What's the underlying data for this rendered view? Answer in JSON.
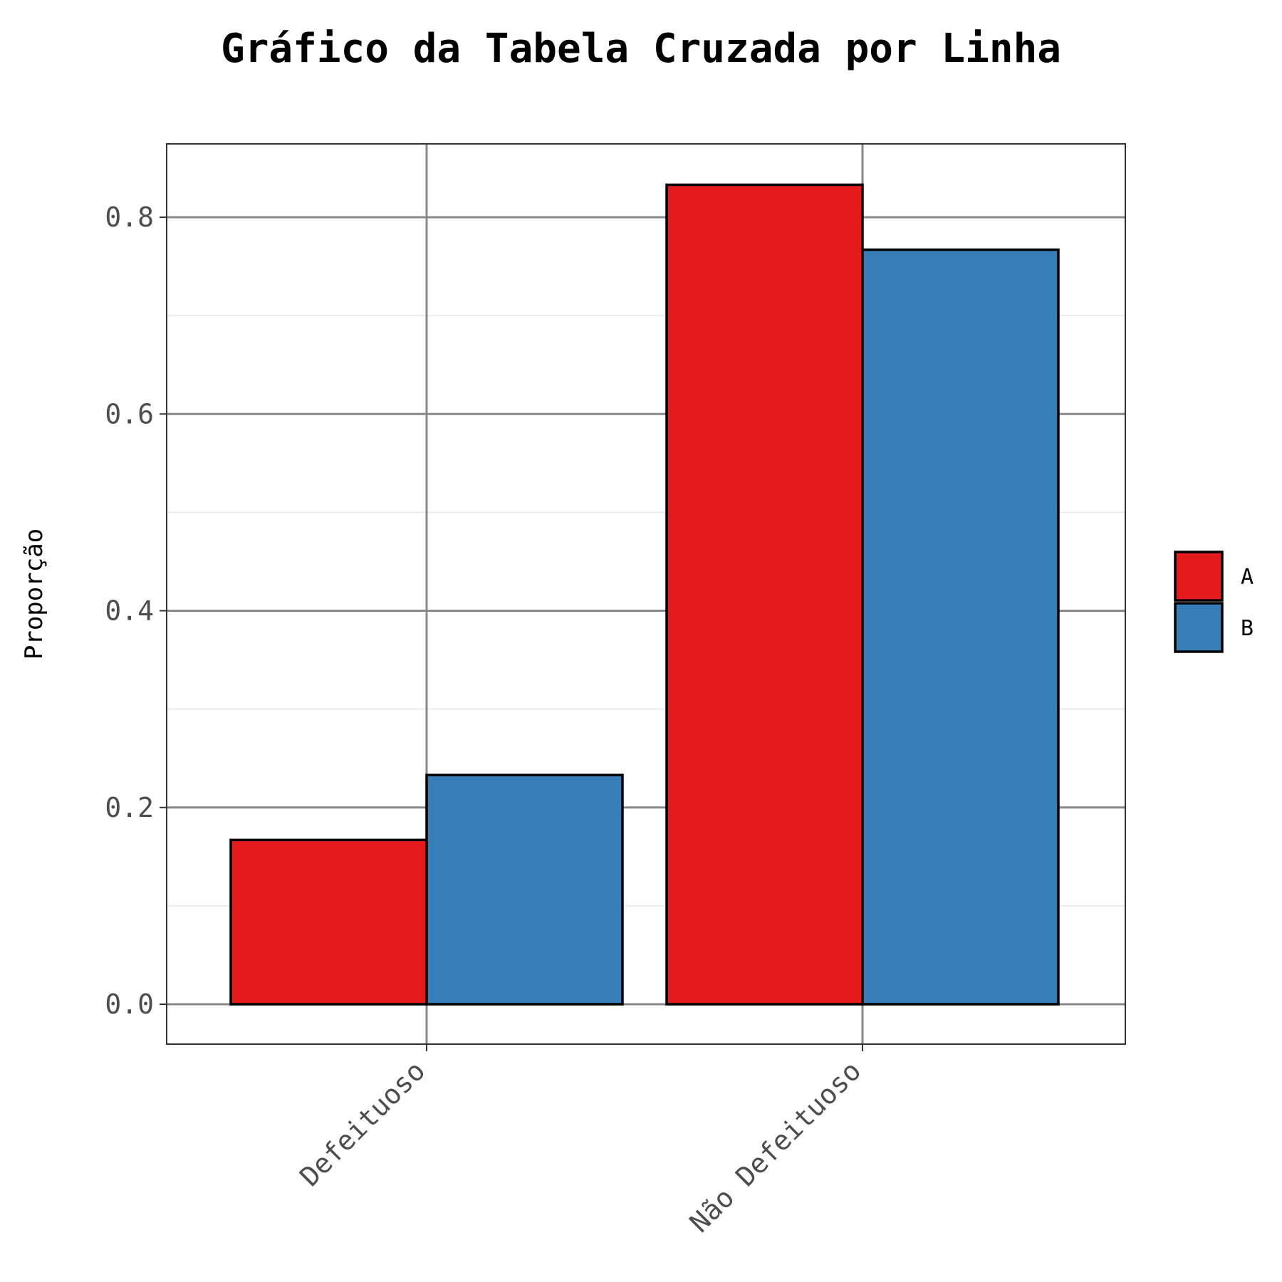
{
  "chart_data": {
    "type": "bar",
    "title": "Gráfico da Tabela Cruzada por Linha",
    "xlabel": "",
    "ylabel": "Proporção",
    "categories": [
      "Defeituoso",
      "Não Defeituoso"
    ],
    "series": [
      {
        "name": "A",
        "values": [
          0.167,
          0.833
        ],
        "color": "#E41A1C"
      },
      {
        "name": "B",
        "values": [
          0.233,
          0.767
        ],
        "color": "#377EB8"
      }
    ],
    "ylim": [
      -0.04,
      0.875
    ],
    "yticks": [
      "0.0",
      "0.2",
      "0.4",
      "0.6",
      "0.8"
    ],
    "grid": true,
    "legend_position": "right"
  }
}
